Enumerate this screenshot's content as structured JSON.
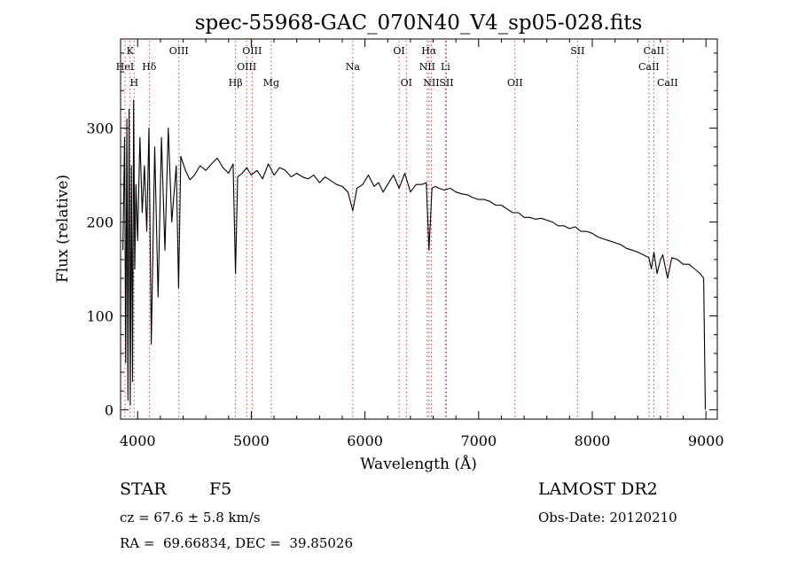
{
  "chart_data": {
    "type": "line",
    "title": "spec-55968-GAC_070N40_V4_sp05-028.fits",
    "xlabel": "Wavelength (Å)",
    "ylabel": "Flux (relative)",
    "xlim": [
      3850,
      9100
    ],
    "ylim": [
      -10,
      395
    ],
    "x_ticks": [
      4000,
      5000,
      6000,
      7000,
      8000,
      9000
    ],
    "y_ticks": [
      0,
      100,
      200,
      300
    ],
    "x_tick_labels": [
      "4000",
      "5000",
      "6000",
      "7000",
      "8000",
      "9000"
    ],
    "y_tick_labels": [
      "0",
      "100",
      "200",
      "300"
    ],
    "grid": false,
    "line_color": "#000000",
    "marker_color": "#d04040",
    "series": [
      {
        "x": [
          3870,
          3885,
          3895,
          3905,
          3915,
          3925,
          3935,
          3945,
          3955,
          3965,
          3975,
          3985,
          4000,
          4020,
          4040,
          4060,
          4080,
          4100,
          4120,
          4150,
          4180,
          4210,
          4240,
          4270,
          4300,
          4340,
          4360,
          4380,
          4420,
          4460,
          4500,
          4550,
          4600,
          4650,
          4700,
          4750,
          4800,
          4840,
          4861,
          4880,
          4920,
          4960,
          5000,
          5050,
          5100,
          5150,
          5200,
          5250,
          5300,
          5350,
          5400,
          5450,
          5500,
          5550,
          5600,
          5650,
          5700,
          5750,
          5800,
          5850,
          5893,
          5930,
          5980,
          6030,
          6080,
          6120,
          6160,
          6200,
          6250,
          6300,
          6350,
          6400,
          6450,
          6500,
          6540,
          6563,
          6590,
          6620,
          6650,
          6700,
          6750,
          6800,
          6850,
          6900,
          6950,
          7000,
          7050,
          7100,
          7150,
          7200,
          7250,
          7300,
          7350,
          7400,
          7450,
          7500,
          7550,
          7600,
          7650,
          7700,
          7750,
          7800,
          7850,
          7900,
          7950,
          8000,
          8050,
          8100,
          8150,
          8200,
          8250,
          8300,
          8350,
          8400,
          8450,
          8498,
          8520,
          8542,
          8570,
          8600,
          8620,
          8662,
          8700,
          8750,
          8800,
          8850,
          8900,
          8950,
          8980,
          8995
        ],
        "y": [
          170,
          290,
          50,
          310,
          10,
          320,
          5,
          260,
          30,
          330,
          150,
          240,
          180,
          290,
          210,
          260,
          190,
          300,
          70,
          280,
          120,
          290,
          170,
          300,
          200,
          260,
          130,
          270,
          255,
          245,
          250,
          260,
          255,
          262,
          268,
          258,
          252,
          262,
          145,
          248,
          252,
          258,
          250,
          255,
          246,
          262,
          250,
          258,
          255,
          248,
          252,
          248,
          246,
          250,
          242,
          248,
          244,
          240,
          238,
          232,
          212,
          236,
          240,
          250,
          238,
          242,
          232,
          240,
          250,
          236,
          252,
          232,
          240,
          240,
          242,
          170,
          236,
          238,
          236,
          234,
          236,
          232,
          230,
          229,
          226,
          224,
          224,
          222,
          218,
          218,
          214,
          210,
          210,
          205,
          205,
          203,
          204,
          202,
          200,
          196,
          196,
          193,
          195,
          190,
          190,
          188,
          184,
          182,
          180,
          178,
          176,
          172,
          170,
          168,
          165,
          162,
          150,
          168,
          145,
          160,
          165,
          140,
          162,
          160,
          155,
          155,
          150,
          145,
          140,
          0
        ]
      }
    ],
    "line_markers": [
      {
        "label": "K",
        "x": 3934,
        "row": 1
      },
      {
        "label": "HeI",
        "x": 3889,
        "row": 2
      },
      {
        "label": "H",
        "x": 3969,
        "row": 3
      },
      {
        "label": "Hδ",
        "x": 4102,
        "row": 2
      },
      {
        "label": "OIII",
        "x": 4363,
        "row": 1
      },
      {
        "label": "Hβ",
        "x": 4861,
        "row": 3
      },
      {
        "label": "OIII",
        "x": 4959,
        "row": 2
      },
      {
        "label": "OIII",
        "x": 5007,
        "row": 1
      },
      {
        "label": "Mg",
        "x": 5175,
        "row": 3
      },
      {
        "label": "Na",
        "x": 5893,
        "row": 2
      },
      {
        "label": "OI",
        "x": 6300,
        "row": 1
      },
      {
        "label": "OI",
        "x": 6364,
        "row": 3
      },
      {
        "label": "Hα",
        "x": 6563,
        "row": 1
      },
      {
        "label": "NII",
        "x": 6548,
        "row": 2
      },
      {
        "label": "NII",
        "x": 6584,
        "row": 3
      },
      {
        "label": "Li",
        "x": 6708,
        "row": 2
      },
      {
        "label": "SII",
        "x": 6717,
        "row": 3
      },
      {
        "label": "OII",
        "x": 7320,
        "row": 3
      },
      {
        "label": "SII",
        "x": 7870,
        "row": 1
      },
      {
        "label": "CaII",
        "x": 8542,
        "row": 1
      },
      {
        "label": "CaII",
        "x": 8498,
        "row": 2
      },
      {
        "label": "CaII",
        "x": 8662,
        "row": 3
      }
    ]
  },
  "info": {
    "class": "STAR",
    "subclass": "F5",
    "redshift": "cz = 67.6 ± 5.8 km/s",
    "coords": "RA =  69.66834, DEC =  39.85026",
    "survey": "LAMOST DR2",
    "obs_date": "Obs-Date: 20120210"
  }
}
